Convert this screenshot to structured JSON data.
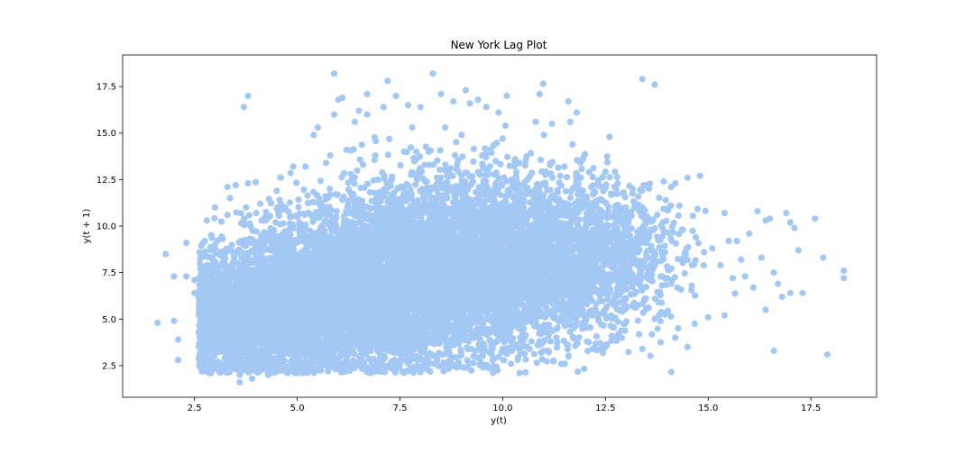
{
  "chart_data": {
    "type": "scatter",
    "title": "New York Lag Plot",
    "xlabel": "y(t)",
    "ylabel": "y(t + 1)",
    "xlim": [
      0.75,
      19.1
    ],
    "ylim": [
      0.8,
      19.2
    ],
    "xticks": [
      "2.5",
      "5.0",
      "7.5",
      "10.0",
      "12.5",
      "15.0",
      "17.5"
    ],
    "yticks": [
      "2.5",
      "5.0",
      "7.5",
      "10.0",
      "12.5",
      "15.0",
      "17.5"
    ],
    "grid": false,
    "color": "#a4c8f4",
    "series": [
      {
        "points": [
          [
            1.6,
            4.8
          ],
          [
            1.8,
            8.5
          ],
          [
            2.0,
            7.3
          ],
          [
            2.0,
            4.9
          ],
          [
            2.1,
            2.8
          ],
          [
            2.1,
            3.9
          ],
          [
            2.3,
            9.1
          ],
          [
            2.3,
            7.3
          ],
          [
            2.5,
            6.4
          ],
          [
            2.5,
            7.1
          ],
          [
            2.6,
            2.9
          ],
          [
            2.8,
            10.3
          ],
          [
            2.8,
            7.9
          ],
          [
            3.0,
            11.0
          ],
          [
            3.1,
            2.3
          ],
          [
            3.3,
            10.6
          ],
          [
            3.3,
            12.1
          ],
          [
            3.5,
            12.2
          ],
          [
            3.6,
            1.6
          ],
          [
            3.6,
            2.0
          ],
          [
            3.7,
            16.4
          ],
          [
            3.8,
            17.0
          ],
          [
            3.8,
            12.3
          ],
          [
            3.9,
            1.8
          ],
          [
            4.0,
            10.7
          ],
          [
            4.1,
            11.2
          ],
          [
            4.3,
            2.0
          ],
          [
            4.5,
            11.9
          ],
          [
            4.6,
            12.6
          ],
          [
            4.7,
            2.2
          ],
          [
            4.9,
            13.2
          ],
          [
            5.0,
            2.1
          ],
          [
            5.2,
            13.2
          ],
          [
            5.4,
            14.9
          ],
          [
            5.5,
            15.3
          ],
          [
            5.5,
            2.3
          ],
          [
            5.7,
            13.4
          ],
          [
            5.8,
            13.8
          ],
          [
            5.9,
            16.0
          ],
          [
            5.9,
            18.2
          ],
          [
            6.0,
            16.8
          ],
          [
            6.1,
            16.9
          ],
          [
            6.2,
            14.1
          ],
          [
            6.3,
            12.8
          ],
          [
            6.4,
            15.6
          ],
          [
            6.5,
            16.2
          ],
          [
            6.6,
            13.3
          ],
          [
            6.7,
            16.0
          ],
          [
            6.7,
            17.1
          ],
          [
            6.9,
            13.8
          ],
          [
            7.0,
            2.3
          ],
          [
            7.1,
            16.4
          ],
          [
            7.2,
            17.8
          ],
          [
            7.4,
            17.0
          ],
          [
            7.6,
            14.0
          ],
          [
            7.7,
            16.5
          ],
          [
            7.8,
            15.3
          ],
          [
            7.9,
            14.0
          ],
          [
            8.0,
            16.4
          ],
          [
            8.1,
            2.7
          ],
          [
            8.2,
            14.0
          ],
          [
            8.3,
            18.2
          ],
          [
            8.4,
            12.6
          ],
          [
            8.5,
            17.1
          ],
          [
            8.6,
            15.3
          ],
          [
            8.7,
            12.9
          ],
          [
            8.8,
            16.7
          ],
          [
            8.9,
            2.5
          ],
          [
            9.0,
            14.9
          ],
          [
            9.1,
            17.3
          ],
          [
            9.2,
            16.6
          ],
          [
            9.3,
            3.0
          ],
          [
            9.4,
            16.8
          ],
          [
            9.5,
            13.8
          ],
          [
            9.6,
            16.4
          ],
          [
            9.7,
            14.1
          ],
          [
            9.8,
            12.8
          ],
          [
            9.9,
            16.1
          ],
          [
            10.0,
            14.7
          ],
          [
            10.1,
            17.0
          ],
          [
            10.2,
            2.6
          ],
          [
            10.4,
            13.4
          ],
          [
            10.6,
            12.5
          ],
          [
            10.7,
            3.8
          ],
          [
            10.8,
            15.6
          ],
          [
            10.9,
            17.1
          ],
          [
            11.0,
            14.9
          ],
          [
            11.1,
            3.3
          ],
          [
            11.2,
            15.5
          ],
          [
            11.4,
            12.7
          ],
          [
            11.5,
            13.2
          ],
          [
            11.6,
            16.7
          ],
          [
            11.7,
            14.4
          ],
          [
            11.8,
            16.1
          ],
          [
            11.9,
            12.6
          ],
          [
            12.0,
            4.8
          ],
          [
            12.1,
            12.9
          ],
          [
            12.2,
            11.7
          ],
          [
            12.3,
            10.1
          ],
          [
            12.4,
            12.1
          ],
          [
            12.5,
            3.5
          ],
          [
            12.6,
            14.8
          ],
          [
            12.7,
            10.5
          ],
          [
            12.8,
            12.3
          ],
          [
            12.9,
            6.6
          ],
          [
            13.0,
            11.0
          ],
          [
            13.1,
            9.2
          ],
          [
            13.2,
            7.1
          ],
          [
            13.3,
            11.6
          ],
          [
            13.4,
            17.9
          ],
          [
            13.4,
            3.4
          ],
          [
            13.5,
            12.2
          ],
          [
            13.6,
            9.8
          ],
          [
            13.7,
            17.6
          ],
          [
            13.7,
            7.9
          ],
          [
            13.8,
            5.9
          ],
          [
            13.9,
            10.2
          ],
          [
            14.0,
            7.2
          ],
          [
            14.1,
            12.1
          ],
          [
            14.2,
            4.0
          ],
          [
            14.2,
            12.3
          ],
          [
            14.3,
            11.1
          ],
          [
            14.4,
            8.3
          ],
          [
            14.5,
            12.6
          ],
          [
            14.5,
            3.5
          ],
          [
            14.6,
            6.8
          ],
          [
            14.7,
            9.4
          ],
          [
            14.8,
            12.7
          ],
          [
            14.9,
            8.6
          ],
          [
            15.0,
            5.1
          ],
          [
            15.1,
            8.8
          ],
          [
            15.3,
            7.9
          ],
          [
            15.4,
            10.7
          ],
          [
            15.4,
            5.2
          ],
          [
            15.5,
            9.2
          ],
          [
            15.6,
            7.2
          ],
          [
            15.7,
            9.2
          ],
          [
            15.8,
            8.2
          ],
          [
            15.9,
            7.3
          ],
          [
            16.0,
            9.6
          ],
          [
            16.1,
            6.7
          ],
          [
            16.2,
            10.8
          ],
          [
            16.3,
            8.3
          ],
          [
            16.4,
            10.3
          ],
          [
            16.4,
            5.5
          ],
          [
            16.5,
            10.4
          ],
          [
            16.6,
            3.3
          ],
          [
            16.6,
            7.5
          ],
          [
            16.7,
            6.9
          ],
          [
            16.8,
            6.2
          ],
          [
            16.9,
            10.7
          ],
          [
            17.0,
            6.4
          ],
          [
            17.0,
            10.2
          ],
          [
            17.1,
            9.9
          ],
          [
            17.2,
            8.7
          ],
          [
            17.3,
            6.4
          ],
          [
            17.6,
            10.4
          ],
          [
            17.8,
            8.3
          ],
          [
            17.9,
            3.1
          ],
          [
            18.3,
            7.6
          ],
          [
            18.3,
            7.2
          ]
        ],
        "dense_region": {
          "note": "dense overlapping cloud of points",
          "centers": [
            [
              3.5,
              5.0,
              0.8,
              1.6,
              1400
            ],
            [
              5.0,
              6.0,
              1.0,
              2.0,
              2200
            ],
            [
              6.8,
              6.8,
              1.2,
              2.2,
              2600
            ],
            [
              8.5,
              7.8,
              1.3,
              2.3,
              2600
            ],
            [
              10.2,
              8.0,
              1.2,
              2.3,
              2000
            ],
            [
              11.8,
              8.2,
              0.9,
              2.0,
              900
            ],
            [
              13.0,
              8.4,
              0.8,
              1.8,
              300
            ]
          ]
        }
      }
    ]
  }
}
